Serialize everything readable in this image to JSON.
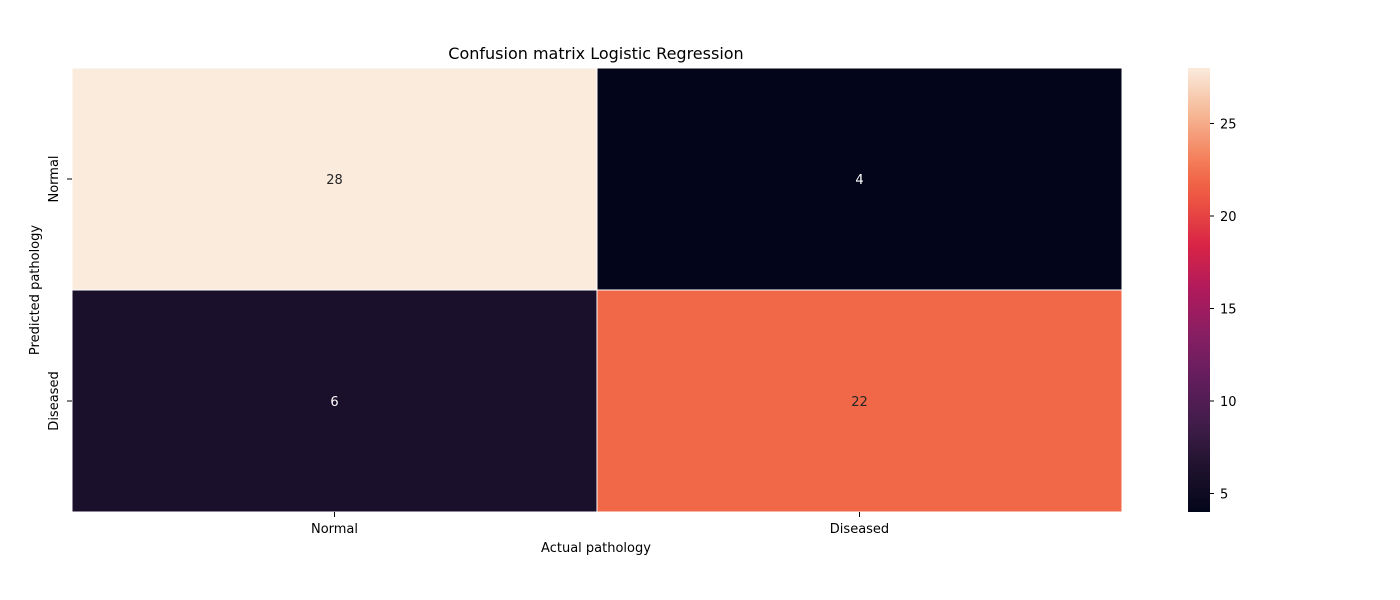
{
  "chart_data": {
    "type": "heatmap",
    "title": "Confusion matrix Logistic Regression",
    "xlabel": "Actual pathology",
    "ylabel": "Predicted pathology",
    "x_categories": [
      "Normal",
      "Diseased"
    ],
    "y_categories": [
      "Normal",
      "Diseased"
    ],
    "values": [
      [
        28,
        4
      ],
      [
        6,
        22
      ]
    ],
    "colormap": "rocket",
    "colorbar": {
      "range": [
        4,
        28
      ],
      "ticks": [
        5,
        10,
        15,
        20,
        25
      ]
    },
    "annotations": true,
    "cell_border_color": "#ffffff"
  }
}
